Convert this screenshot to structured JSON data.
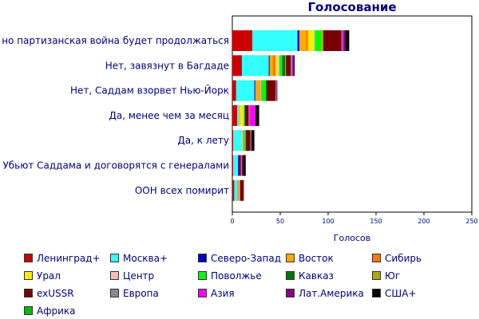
{
  "chart_data": {
    "type": "bar",
    "orientation": "horizontal",
    "stacked": true,
    "title": "Голосование",
    "xlabel": "Голосов",
    "ylabel": "",
    "xlim": [
      0,
      250
    ],
    "xticks": [
      "0",
      "50",
      "100",
      "150",
      "200",
      "250"
    ],
    "grid": false,
    "legend_position": "bottom",
    "categories": [
      "Да, но партизанская война будет продолжаться",
      "Нет, завязнут в Багдаде",
      "Нет, Саддам взорвет Нью-Йорк",
      "Да, менее чем за месяц",
      "Да, к лету",
      "Убьют Саддама и договорятся с генералами",
      "ООН всех помирит"
    ],
    "series": [
      {
        "name": "Ленинград+",
        "color": "#cc0000",
        "values": [
          21,
          10,
          4,
          5,
          1,
          1,
          2
        ]
      },
      {
        "name": "Москва+",
        "color": "#33ffff",
        "values": [
          47,
          28,
          19,
          2,
          9,
          5,
          3
        ]
      },
      {
        "name": "Северо-Запад",
        "color": "#0000cc",
        "values": [
          2,
          1,
          1,
          0,
          0,
          1,
          0
        ]
      },
      {
        "name": "Восток",
        "color": "#ffaa00",
        "values": [
          7,
          3,
          4,
          1,
          0,
          0,
          1
        ]
      },
      {
        "name": "Сибирь",
        "color": "#ff7700",
        "values": [
          2,
          3,
          1,
          0,
          0,
          0,
          1
        ]
      },
      {
        "name": "Урал",
        "color": "#ffee00",
        "values": [
          6,
          2,
          0,
          3,
          0,
          0,
          0
        ]
      },
      {
        "name": "Центр",
        "color": "#ffbbbb",
        "values": [
          1,
          2,
          1,
          1,
          1,
          0,
          1
        ]
      },
      {
        "name": "Поволжье",
        "color": "#00ff00",
        "values": [
          7,
          3,
          5,
          1,
          2,
          0,
          0
        ]
      },
      {
        "name": "Кавказ",
        "color": "#007700",
        "values": [
          0,
          3,
          1,
          0,
          0,
          0,
          0
        ]
      },
      {
        "name": "Юг",
        "color": "#aaaa00",
        "values": [
          2,
          1,
          0,
          0,
          1,
          0,
          0
        ]
      },
      {
        "name": "exUSSR",
        "color": "#770000",
        "values": [
          19,
          5,
          9,
          4,
          5,
          2,
          4
        ]
      },
      {
        "name": "Европа",
        "color": "#888888",
        "values": [
          1,
          1,
          1,
          1,
          1,
          1,
          0
        ]
      },
      {
        "name": "Азия",
        "color": "#ff00ff",
        "values": [
          1,
          1,
          0,
          6,
          0,
          0,
          0
        ]
      },
      {
        "name": "Лат.Америка",
        "color": "#880088",
        "values": [
          2,
          1,
          1,
          0,
          0,
          1,
          0
        ]
      },
      {
        "name": "США+",
        "color": "#000000",
        "values": [
          4,
          1,
          0,
          4,
          3,
          3,
          0
        ]
      },
      {
        "name": "Африка",
        "color": "#00bb00",
        "values": [
          0,
          0,
          0,
          0,
          0,
          0,
          0
        ]
      }
    ]
  }
}
